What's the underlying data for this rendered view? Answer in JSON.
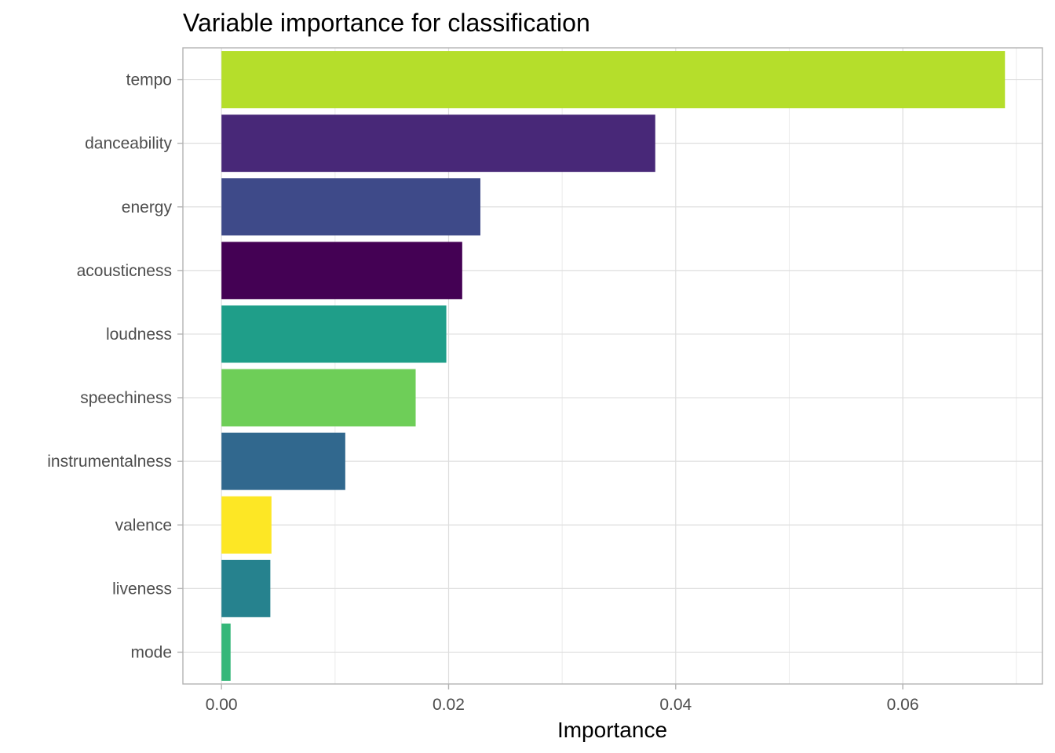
{
  "chart_data": {
    "type": "bar",
    "orientation": "horizontal",
    "title": "Variable importance for classification",
    "xlabel": "Importance",
    "ylabel": "",
    "xlim": [
      -0.0034,
      0.0723
    ],
    "x_ticks": [
      0.0,
      0.02,
      0.04,
      0.06
    ],
    "x_tick_labels": [
      "0.00",
      "0.02",
      "0.04",
      "0.06"
    ],
    "grid": true,
    "legend": "none",
    "categories": [
      "tempo",
      "danceability",
      "energy",
      "acousticness",
      "loudness",
      "speechiness",
      "instrumentalness",
      "valence",
      "liveness",
      "mode"
    ],
    "values": [
      0.069,
      0.0382,
      0.0228,
      0.0212,
      0.0198,
      0.0171,
      0.0109,
      0.0044,
      0.0043,
      0.0008
    ],
    "colors": [
      "#b5de2b",
      "#482878",
      "#3e4a89",
      "#440154",
      "#1f9e89",
      "#6ece58",
      "#31688e",
      "#fde725",
      "#26828e",
      "#35b779"
    ]
  }
}
